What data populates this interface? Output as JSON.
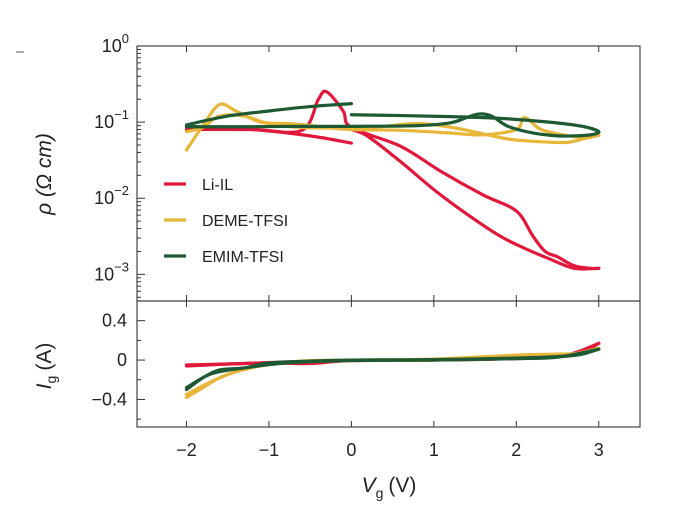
{
  "chart_data": [
    {
      "type": "line",
      "yscale": "log",
      "ylabel": "ρ (Ω cm)",
      "xlabel": "",
      "xlim": [
        -2.6,
        3.5
      ],
      "ylim_log10": [
        -3.35,
        0
      ],
      "yticks": [
        {
          "value": 1,
          "base": "10",
          "exp": "0"
        },
        {
          "value": 0.1,
          "base": "10",
          "exp": "−1"
        },
        {
          "value": 0.01,
          "base": "10",
          "exp": "−2"
        },
        {
          "value": 0.001,
          "base": "10",
          "exp": "−3"
        }
      ],
      "legend": [
        "Li-IL",
        "DEME-TFSI",
        "EMIM-TFSI"
      ],
      "colors": {
        "Li-IL": "#e0183c",
        "DEME-TFSI": "#e8b73a",
        "EMIM-TFSI": "#1d5a33"
      },
      "series": [
        {
          "name": "Li-IL",
          "segments": [
            [
              [
                -2.0,
                0.08
              ],
              [
                -1.2,
                0.08
              ],
              [
                -0.6,
                0.078
              ],
              [
                -0.4,
                0.2
              ],
              [
                -0.3,
                0.25
              ],
              [
                -0.1,
                0.14
              ],
              [
                0.0,
                0.085
              ],
              [
                0.6,
                0.048
              ],
              [
                1.1,
                0.022
              ],
              [
                1.6,
                0.011
              ],
              [
                2.0,
                0.0068
              ],
              [
                2.2,
                0.0032
              ],
              [
                2.35,
                0.002
              ],
              [
                2.5,
                0.0017
              ],
              [
                2.7,
                0.0013
              ],
              [
                2.9,
                0.0012
              ],
              [
                3.0,
                0.0012
              ]
            ],
            [
              [
                3.0,
                0.0012
              ],
              [
                2.7,
                0.0012
              ],
              [
                2.4,
                0.0016
              ],
              [
                2.1,
                0.0022
              ],
              [
                1.8,
                0.0032
              ],
              [
                1.4,
                0.0062
              ],
              [
                1.0,
                0.013
              ],
              [
                0.6,
                0.03
              ],
              [
                0.2,
                0.065
              ],
              [
                0.0,
                0.08
              ]
            ],
            [
              [
                -2.0,
                0.088
              ],
              [
                -1.2,
                0.08
              ],
              [
                -0.5,
                0.066
              ],
              [
                0.0,
                0.053
              ]
            ]
          ]
        },
        {
          "name": "DEME-TFSI",
          "segments": [
            [
              [
                -2.0,
                0.043
              ],
              [
                -1.8,
                0.09
              ],
              [
                -1.6,
                0.17
              ],
              [
                -1.4,
                0.14
              ],
              [
                -1.1,
                0.1
              ],
              [
                -0.7,
                0.095
              ],
              [
                -0.3,
                0.085
              ],
              [
                0.0,
                0.08
              ],
              [
                0.6,
                0.078
              ],
              [
                1.2,
                0.072
              ],
              [
                1.6,
                0.068
              ],
              [
                2.0,
                0.08
              ],
              [
                2.1,
                0.115
              ],
              [
                2.3,
                0.08
              ],
              [
                2.6,
                0.067
              ],
              [
                2.8,
                0.063
              ],
              [
                3.0,
                0.067
              ]
            ],
            [
              [
                3.0,
                0.067
              ],
              [
                2.8,
                0.06
              ],
              [
                2.6,
                0.054
              ],
              [
                2.2,
                0.056
              ],
              [
                1.9,
                0.06
              ],
              [
                1.6,
                0.07
              ],
              [
                1.2,
                0.086
              ],
              [
                0.8,
                0.096
              ],
              [
                0.4,
                0.088
              ],
              [
                0.0,
                0.084
              ],
              [
                -0.6,
                0.085
              ],
              [
                -1.0,
                0.095
              ],
              [
                -1.3,
                0.12
              ],
              [
                -1.6,
                0.12
              ],
              [
                -1.8,
                0.085
              ],
              [
                -2.0,
                0.075
              ]
            ]
          ]
        },
        {
          "name": "EMIM-TFSI",
          "segments": [
            [
              [
                -2.0,
                0.092
              ],
              [
                -1.5,
                0.12
              ],
              [
                -1.0,
                0.14
              ],
              [
                -0.5,
                0.16
              ],
              [
                0.0,
                0.175
              ]
            ],
            [
              [
                0.0,
                0.125
              ],
              [
                0.6,
                0.122
              ],
              [
                1.2,
                0.118
              ],
              [
                1.8,
                0.112
              ],
              [
                2.4,
                0.1
              ],
              [
                2.8,
                0.088
              ],
              [
                3.0,
                0.075
              ],
              [
                2.9,
                0.068
              ],
              [
                2.7,
                0.066
              ],
              [
                2.5,
                0.066
              ],
              [
                2.2,
                0.072
              ],
              [
                1.9,
                0.088
              ],
              [
                1.7,
                0.12
              ],
              [
                1.55,
                0.128
              ],
              [
                1.4,
                0.115
              ],
              [
                1.2,
                0.098
              ],
              [
                0.8,
                0.09
              ],
              [
                0.0,
                0.088
              ],
              [
                -0.6,
                0.088
              ],
              [
                -1.2,
                0.087
              ],
              [
                -1.7,
                0.087
              ],
              [
                -2.0,
                0.087
              ]
            ]
          ]
        }
      ]
    },
    {
      "type": "line",
      "ylabel_main": "I",
      "ylabel_sub": "g",
      "ylabel_unit": "(A)",
      "xlabel_main": "V",
      "xlabel_sub": "g",
      "xlabel_unit": "(V)",
      "xlim": [
        -2.6,
        3.5
      ],
      "ylim": [
        -0.68,
        0.6
      ],
      "xticks": [
        {
          "value": -2,
          "label": "−2"
        },
        {
          "value": -1,
          "label": "−1"
        },
        {
          "value": 0,
          "label": "0"
        },
        {
          "value": 1,
          "label": "1"
        },
        {
          "value": 2,
          "label": "2"
        },
        {
          "value": 3,
          "label": "3"
        }
      ],
      "yticks": [
        {
          "value": 0.4,
          "label": "0.4"
        },
        {
          "value": 0,
          "label": "0"
        },
        {
          "value": -0.4,
          "label": "−0.4"
        }
      ],
      "series": [
        {
          "name": "Li-IL",
          "segments": [
            [
              [
                -2.0,
                -0.05
              ],
              [
                -1.5,
                -0.04
              ],
              [
                -1.0,
                -0.03
              ],
              [
                -0.5,
                -0.035
              ],
              [
                0.0,
                -0.005
              ],
              [
                1.0,
                0.0
              ],
              [
                2.0,
                0.02
              ],
              [
                2.6,
                0.04
              ],
              [
                2.8,
                0.08
              ],
              [
                3.0,
                0.17
              ]
            ],
            [
              [
                3.0,
                0.17
              ],
              [
                2.6,
                0.05
              ],
              [
                2.0,
                0.015
              ],
              [
                1.0,
                0.0
              ],
              [
                0.0,
                -0.005
              ],
              [
                -0.8,
                -0.02
              ],
              [
                -1.5,
                -0.04
              ],
              [
                -2.0,
                -0.06
              ]
            ]
          ]
        },
        {
          "name": "DEME-TFSI",
          "segments": [
            [
              [
                -2.0,
                -0.38
              ],
              [
                -1.8,
                -0.28
              ],
              [
                -1.6,
                -0.18
              ],
              [
                -1.4,
                -0.12
              ],
              [
                -1.1,
                -0.06
              ],
              [
                -0.6,
                -0.01
              ],
              [
                0.0,
                0.0
              ],
              [
                1.0,
                0.01
              ],
              [
                2.0,
                0.05
              ],
              [
                2.5,
                0.06
              ],
              [
                2.8,
                0.07
              ],
              [
                3.0,
                0.12
              ]
            ],
            [
              [
                3.0,
                0.12
              ],
              [
                2.6,
                0.05
              ],
              [
                2.0,
                0.03
              ],
              [
                1.0,
                0.0
              ],
              [
                0.0,
                -0.005
              ],
              [
                -0.8,
                -0.03
              ],
              [
                -1.3,
                -0.09
              ],
              [
                -1.7,
                -0.22
              ],
              [
                -2.0,
                -0.35
              ]
            ]
          ]
        },
        {
          "name": "EMIM-TFSI",
          "segments": [
            [
              [
                -2.0,
                -0.3
              ],
              [
                -1.8,
                -0.18
              ],
              [
                -1.6,
                -0.1
              ],
              [
                -1.3,
                -0.08
              ],
              [
                -1.0,
                -0.03
              ],
              [
                -0.5,
                -0.01
              ],
              [
                0.0,
                0.0
              ],
              [
                1.0,
                0.005
              ],
              [
                2.0,
                0.02
              ],
              [
                2.6,
                0.04
              ],
              [
                2.8,
                0.06
              ],
              [
                3.0,
                0.11
              ]
            ],
            [
              [
                3.0,
                0.11
              ],
              [
                2.5,
                0.03
              ],
              [
                2.0,
                0.015
              ],
              [
                1.0,
                0.0
              ],
              [
                0.0,
                -0.005
              ],
              [
                -0.8,
                -0.03
              ],
              [
                -1.3,
                -0.08
              ],
              [
                -1.7,
                -0.14
              ],
              [
                -2.0,
                -0.28
              ]
            ]
          ]
        }
      ]
    }
  ]
}
